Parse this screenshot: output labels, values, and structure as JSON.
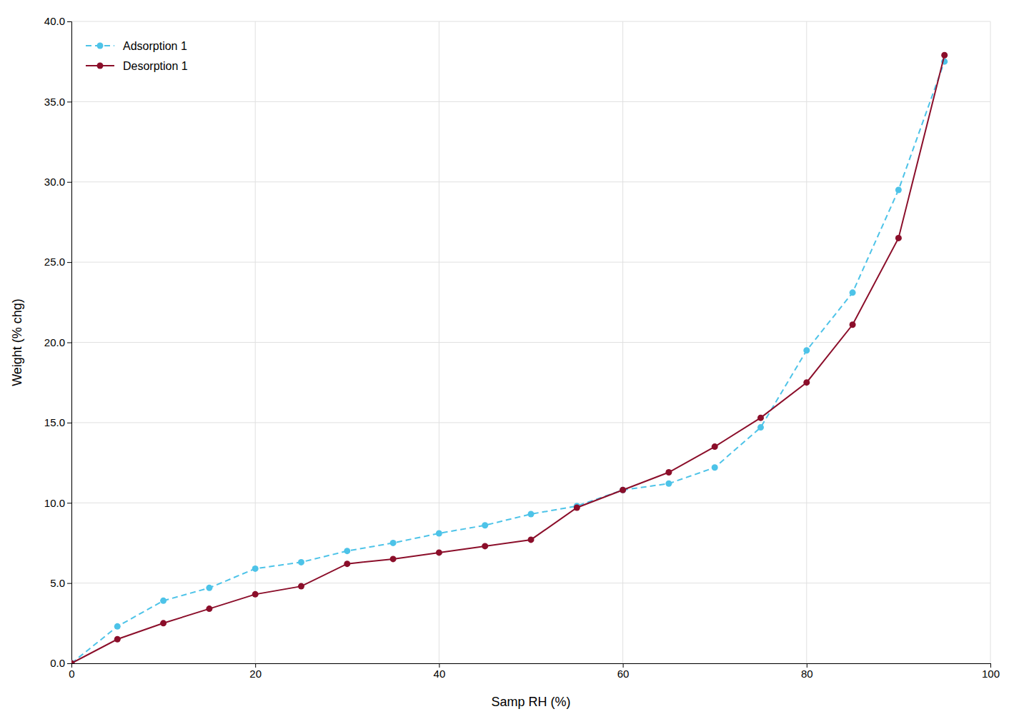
{
  "chart_data": {
    "type": "line",
    "xlabel": "Samp RH (%)",
    "ylabel": "Weight (% chg)",
    "x": [
      0,
      5,
      10,
      15,
      20,
      25,
      30,
      35,
      40,
      45,
      50,
      55,
      60,
      65,
      70,
      75,
      80,
      85,
      90,
      95
    ],
    "series": [
      {
        "name": "Adsorption 1",
        "color": "#4dc3e8",
        "marker": "circle",
        "line_style": "dashed",
        "values": [
          0.0,
          2.3,
          3.9,
          4.7,
          5.9,
          6.3,
          7.0,
          7.5,
          8.1,
          8.6,
          9.3,
          9.8,
          10.8,
          11.2,
          12.2,
          14.7,
          19.5,
          23.1,
          29.5,
          37.5
        ]
      },
      {
        "name": "Desorption 1",
        "color": "#8b0e2a",
        "marker": "circle",
        "line_style": "solid",
        "values": [
          0.0,
          1.5,
          2.5,
          3.4,
          4.3,
          4.8,
          6.2,
          6.5,
          6.9,
          7.3,
          7.7,
          9.7,
          10.8,
          11.9,
          13.5,
          15.3,
          17.5,
          21.1,
          26.5,
          37.9
        ]
      }
    ],
    "xlim": [
      0,
      100
    ],
    "ylim": [
      0,
      40
    ],
    "xticks": [
      0,
      20,
      40,
      60,
      80,
      100
    ],
    "yticks": [
      {
        "value": 0.0,
        "label": "0.0"
      },
      {
        "value": 5.0,
        "label": "5.0"
      },
      {
        "value": 10.0,
        "label": "10.0"
      },
      {
        "value": 15.0,
        "label": "15.0"
      },
      {
        "value": 20.0,
        "label": "20.0"
      },
      {
        "value": 25.0,
        "label": "25.0"
      },
      {
        "value": 30.0,
        "label": "30.0"
      },
      {
        "value": 35.0,
        "label": "35.0"
      },
      {
        "value": 40.0,
        "label": "40.0"
      }
    ],
    "grid": true,
    "legend": "upper left"
  }
}
